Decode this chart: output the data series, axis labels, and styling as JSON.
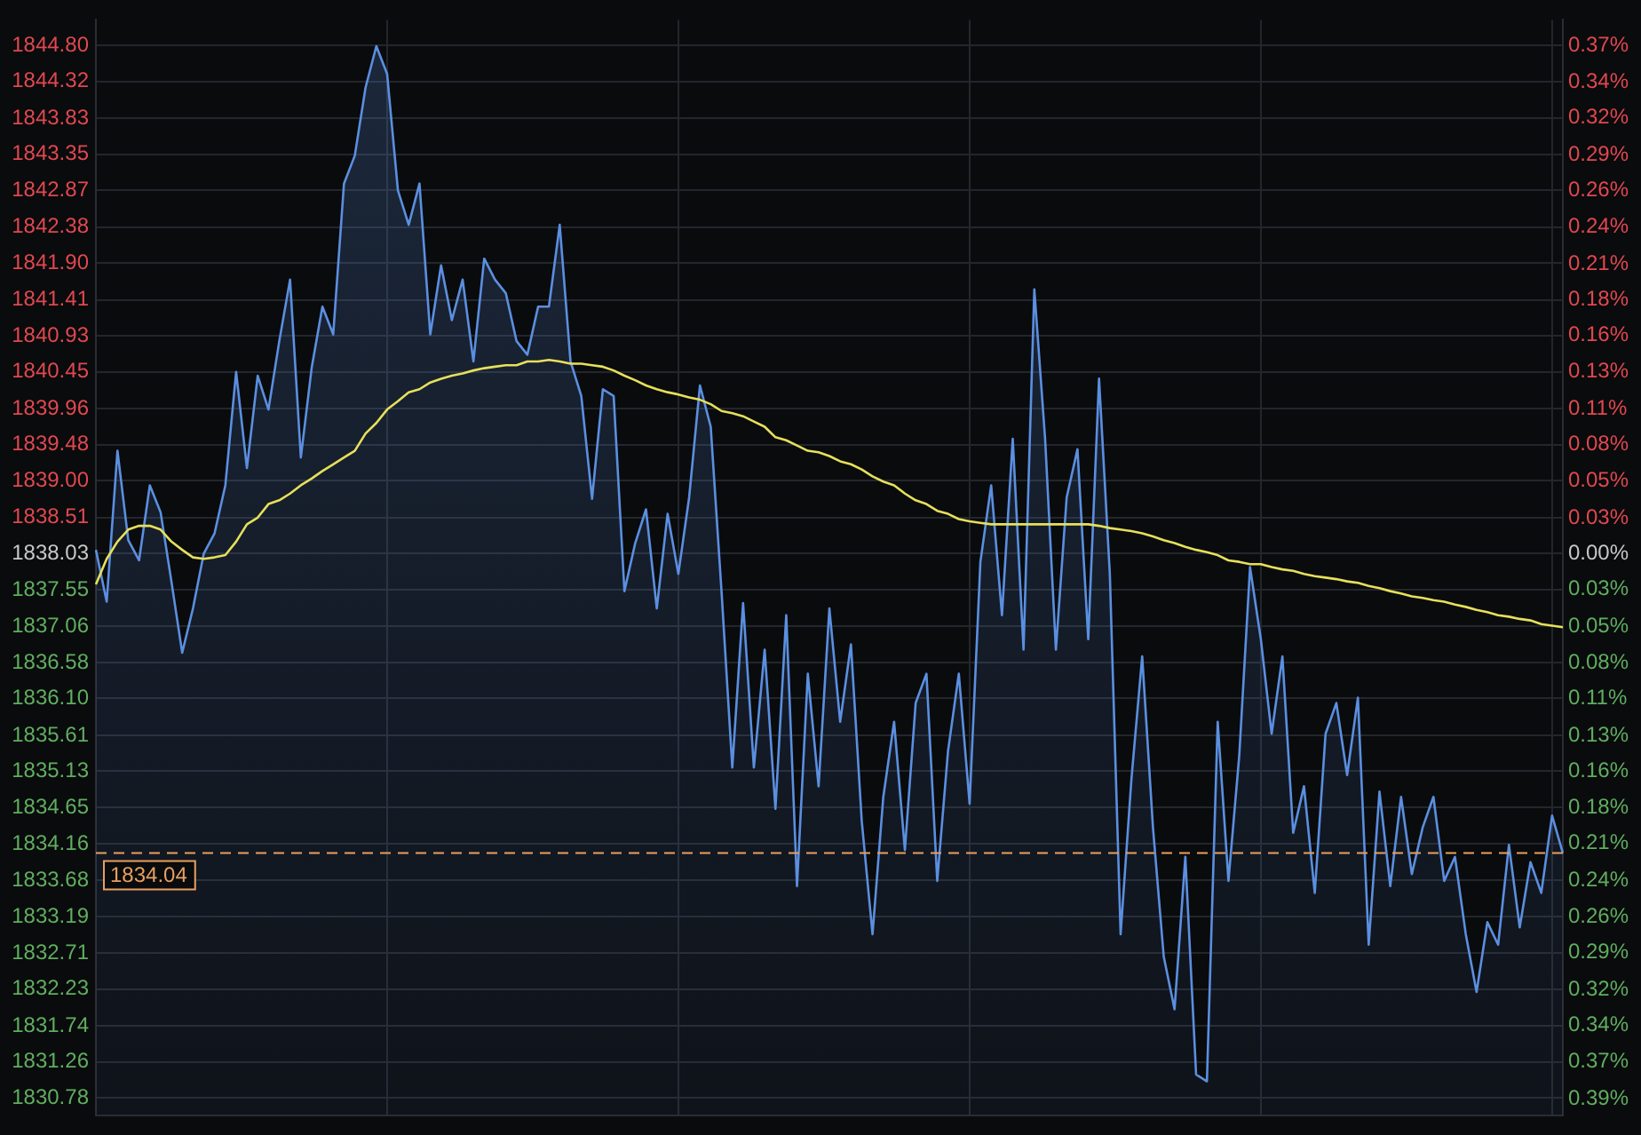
{
  "chart_data": {
    "type": "line",
    "categories": [
      null,
      null,
      null,
      null,
      null,
      null,
      null,
      null,
      null,
      null,
      null,
      null,
      null,
      null,
      null,
      null,
      null,
      null,
      null,
      null,
      null,
      null,
      null,
      null,
      null,
      null,
      null,
      null,
      null,
      null,
      null,
      null,
      null,
      null,
      null,
      null,
      null,
      null,
      null,
      null,
      null,
      null,
      null,
      null,
      null,
      null,
      null,
      null,
      null,
      null,
      null,
      null,
      null,
      null,
      null,
      null,
      null,
      null,
      null,
      null,
      null,
      null,
      null,
      null,
      null,
      null,
      null,
      null,
      null,
      null,
      null,
      null,
      null,
      null,
      null,
      null,
      null,
      null,
      null,
      null,
      null,
      null,
      null,
      null,
      null,
      null,
      null,
      null,
      null,
      null,
      null,
      null,
      null,
      null,
      null,
      null,
      null,
      null,
      null,
      null,
      null,
      null,
      null,
      null,
      null,
      null,
      null,
      null,
      null,
      null,
      null,
      null,
      null,
      null,
      null,
      null,
      null,
      null,
      null,
      null,
      null,
      null,
      null,
      null,
      null,
      null,
      null,
      null,
      null,
      null,
      null,
      null,
      null,
      null,
      null,
      null,
      null
    ],
    "series": [
      {
        "type": "area",
        "color": "#5b8fe0",
        "values": [
          1838.08,
          1837.39,
          1839.4,
          1838.21,
          1837.94,
          1838.94,
          1838.58,
          1837.66,
          1836.71,
          1837.3,
          1838.03,
          1838.3,
          1838.94,
          1840.45,
          1839.17,
          1840.4,
          1839.95,
          1840.86,
          1841.68,
          1839.31,
          1840.5,
          1841.32,
          1840.95,
          1842.96,
          1843.33,
          1844.24,
          1844.79,
          1844.42,
          1842.87,
          1842.41,
          1842.96,
          1840.95,
          1841.87,
          1841.14,
          1841.68,
          1840.59,
          1841.96,
          1841.68,
          1841.5,
          1840.86,
          1840.68,
          1841.32,
          1841.32,
          1842.41,
          1840.59,
          1840.13,
          1838.76,
          1840.22,
          1840.13,
          1837.53,
          1838.17,
          1838.62,
          1837.3,
          1838.56,
          1837.76,
          1838.78,
          1840.27,
          1839.72,
          1837.53,
          1835.18,
          1837.37,
          1835.18,
          1836.75,
          1834.63,
          1837.21,
          1833.6,
          1836.43,
          1834.93,
          1837.3,
          1835.79,
          1836.82,
          1834.47,
          1832.96,
          1834.79,
          1835.79,
          1834.08,
          1836.04,
          1836.43,
          1833.67,
          1835.4,
          1836.43,
          1834.7,
          1837.92,
          1838.94,
          1837.21,
          1839.56,
          1836.75,
          1841.55,
          1839.56,
          1836.75,
          1838.78,
          1839.42,
          1836.89,
          1840.36,
          1837.76,
          1832.96,
          1835.02,
          1836.66,
          1834.38,
          1832.66,
          1831.96,
          1833.99,
          1831.09,
          1831.0,
          1835.79,
          1833.67,
          1835.34,
          1837.85,
          1836.89,
          1835.63,
          1836.66,
          1834.31,
          1834.93,
          1833.51,
          1835.63,
          1836.04,
          1835.08,
          1836.11,
          1832.82,
          1834.86,
          1833.6,
          1834.79,
          1833.76,
          1834.38,
          1834.79,
          1833.67,
          1833.99,
          1832.96,
          1832.19,
          1833.12,
          1832.82,
          1834.15,
          1833.05,
          1833.92,
          1833.51,
          1834.54,
          1834.04
        ]
      },
      {
        "type": "line",
        "color": "#e6e05a",
        "values": [
          1837.62,
          1837.96,
          1838.19,
          1838.35,
          1838.4,
          1838.4,
          1838.35,
          1838.19,
          1838.08,
          1837.98,
          1837.96,
          1837.98,
          1838.01,
          1838.19,
          1838.42,
          1838.51,
          1838.69,
          1838.74,
          1838.83,
          1838.94,
          1839.03,
          1839.13,
          1839.22,
          1839.31,
          1839.4,
          1839.63,
          1839.77,
          1839.95,
          1840.06,
          1840.18,
          1840.22,
          1840.31,
          1840.36,
          1840.4,
          1840.43,
          1840.47,
          1840.5,
          1840.52,
          1840.54,
          1840.54,
          1840.59,
          1840.59,
          1840.61,
          1840.59,
          1840.56,
          1840.56,
          1840.54,
          1840.52,
          1840.47,
          1840.4,
          1840.34,
          1840.27,
          1840.22,
          1840.18,
          1840.15,
          1840.11,
          1840.08,
          1840.02,
          1839.93,
          1839.9,
          1839.86,
          1839.79,
          1839.72,
          1839.58,
          1839.54,
          1839.47,
          1839.4,
          1839.38,
          1839.33,
          1839.26,
          1839.22,
          1839.15,
          1839.06,
          1838.99,
          1838.94,
          1838.83,
          1838.74,
          1838.69,
          1838.6,
          1838.56,
          1838.49,
          1838.46,
          1838.44,
          1838.42,
          1838.42,
          1838.42,
          1838.42,
          1838.42,
          1838.42,
          1838.42,
          1838.42,
          1838.42,
          1838.42,
          1838.4,
          1838.37,
          1838.35,
          1838.33,
          1838.3,
          1838.26,
          1838.21,
          1838.17,
          1838.12,
          1838.08,
          1838.05,
          1838.01,
          1837.94,
          1837.92,
          1837.89,
          1837.89,
          1837.85,
          1837.82,
          1837.8,
          1837.76,
          1837.73,
          1837.71,
          1837.69,
          1837.66,
          1837.64,
          1837.6,
          1837.57,
          1837.53,
          1837.5,
          1837.46,
          1837.44,
          1837.41,
          1837.39,
          1837.35,
          1837.32,
          1837.28,
          1837.25,
          1837.21,
          1837.19,
          1837.16,
          1837.14,
          1837.09,
          1837.07,
          1837.05
        ]
      }
    ],
    "ylim": [
      1830.55,
      1845.14
    ],
    "yticks": [
      {
        "value": 1844.8,
        "label": "1844.80"
      },
      1844.32,
      1843.83,
      1843.35,
      1842.87,
      1842.38,
      {
        "value": 1841.9,
        "label": "1841.90"
      },
      1841.41,
      1840.93,
      1840.45,
      1839.96,
      1839.48,
      {
        "value": 1839,
        "label": "1839.00"
      },
      1838.51,
      1838.03,
      1837.55,
      1837.06,
      1836.58,
      {
        "value": 1836.1,
        "label": "1836.10"
      },
      1835.61,
      1835.13,
      1834.65,
      1834.16,
      1833.68,
      1833.19,
      1832.71,
      1832.23,
      1831.74,
      1831.26,
      1830.78
    ],
    "y2lim": [
      -0.407,
      0.3868
    ],
    "y2ticks": [
      {
        "value": 0.368,
        "label": "0.37%"
      },
      {
        "value": 0.342,
        "label": "0.34%"
      },
      {
        "value": 0.316,
        "label": "0.32%"
      },
      {
        "value": 0.289,
        "label": "0.29%"
      },
      {
        "value": 0.263,
        "label": "0.26%"
      },
      {
        "value": 0.237,
        "label": "0.24%"
      },
      {
        "value": 0.21,
        "label": "0.21%"
      },
      {
        "value": 0.184,
        "label": "0.18%"
      },
      {
        "value": 0.158,
        "label": "0.16%"
      },
      {
        "value": 0.132,
        "label": "0.13%"
      },
      {
        "value": 0.105,
        "label": "0.11%"
      },
      {
        "value": 0.079,
        "label": "0.08%"
      },
      {
        "value": 0.053,
        "label": "0.05%"
      },
      {
        "value": 0.026,
        "label": "0.03%"
      },
      {
        "value": 0,
        "label": "0.00%"
      },
      {
        "value": -0.026,
        "label": "0.03%"
      },
      {
        "value": -0.053,
        "label": "0.05%"
      },
      {
        "value": -0.079,
        "label": "0.08%"
      },
      {
        "value": -0.105,
        "label": "0.11%"
      },
      {
        "value": -0.132,
        "label": "0.13%"
      },
      {
        "value": -0.158,
        "label": "0.16%"
      },
      {
        "value": -0.184,
        "label": "0.18%"
      },
      {
        "value": -0.21,
        "label": "0.21%"
      },
      {
        "value": -0.237,
        "label": "0.24%"
      },
      {
        "value": -0.263,
        "label": "0.26%"
      },
      {
        "value": -0.289,
        "label": "0.29%"
      },
      {
        "value": -0.316,
        "label": "0.32%"
      },
      {
        "value": -0.342,
        "label": "0.34%"
      },
      {
        "value": -0.368,
        "label": "0.37%"
      },
      {
        "value": -0.395,
        "label": "0.39%"
      }
    ],
    "ref_lines": [
      {
        "axis": "y",
        "value": 1834.04,
        "label": "1834.04",
        "color": "#e8a060",
        "line_style": "dashed"
      }
    ],
    "grid": true,
    "legend": false,
    "marker": "none",
    "line_style": "solid"
  }
}
